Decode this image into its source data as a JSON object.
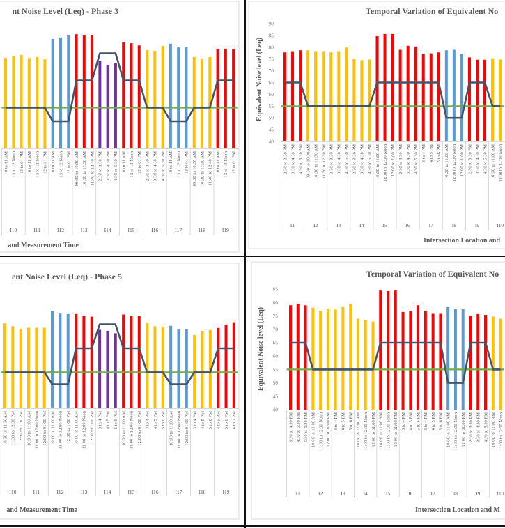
{
  "colors": {
    "red": "#ff0000",
    "yellow": "#ffc000",
    "blue": "#5b9bd5",
    "purple": "#7030a0",
    "measured_limit_line": "#70ad47",
    "standard_line": "#44546a"
  },
  "chart_data": [
    {
      "type": "bar",
      "panel": "top-left",
      "title": "nt Noise Level (Leq) - Phase 3",
      "xlabel": "and Measurement Time",
      "ylabel": "",
      "ylim": [
        40,
        90
      ],
      "yticks": [],
      "reference_line": 55,
      "groups": [
        {
          "name": "I10",
          "color": "yellow",
          "standard": 55,
          "bars": [
            {
              "label": "10 to 11 AM",
              "value": 73.3
            },
            {
              "label": "11 to 12 Noon",
              "value": 74.1
            },
            {
              "label": "12 to 01 PM",
              "value": 74.4
            }
          ]
        },
        {
          "name": "I11",
          "color": "yellow",
          "standard": 55,
          "bars": [
            {
              "label": "10 to 11 AM",
              "value": 73.3
            },
            {
              "label": "11 to 12 Noon",
              "value": 73.6
            },
            {
              "label": "12 to 01 PM",
              "value": 72.8
            }
          ]
        },
        {
          "name": "I12",
          "color": "blue",
          "standard": 50,
          "bars": [
            {
              "label": "10 to 11 AM",
              "value": 80.3
            },
            {
              "label": "11 to 12 Noon",
              "value": 80.8
            },
            {
              "label": "12 to 01 PM",
              "value": 81.8
            }
          ]
        },
        {
          "name": "I13",
          "color": "red",
          "standard": 65,
          "bars": [
            {
              "label": "09:30 to 10:30 AM",
              "value": 82.0
            },
            {
              "label": "10:30 to 11:30 AM",
              "value": 81.8
            },
            {
              "label": "11:40 to 12:40 PM",
              "value": 81.8
            }
          ]
        },
        {
          "name": "I14",
          "color": "purple",
          "standard": 75,
          "bars": [
            {
              "label": "2:30 to 3:30 PM",
              "value": 72.3
            },
            {
              "label": "3:30 to 4:30 PM",
              "value": 70.5
            },
            {
              "label": "4:30 to 5:30 PM",
              "value": 71.3
            }
          ]
        },
        {
          "name": "I15",
          "color": "red",
          "standard": 65,
          "bars": [
            {
              "label": "10 to 11 AM",
              "value": 79.0
            },
            {
              "label": "11 to 12 Noon",
              "value": 78.7
            },
            {
              "label": "12 to 01 PM",
              "value": 77.9
            }
          ]
        },
        {
          "name": "I16",
          "color": "yellow",
          "standard": 55,
          "bars": [
            {
              "label": "2:30 to 3:30 PM",
              "value": 76.2
            },
            {
              "label": "3:30 to 4:30 PM",
              "value": 75.9
            },
            {
              "label": "4:30 to 5:30 PM",
              "value": 77.7
            }
          ]
        },
        {
          "name": "I17",
          "color": "blue",
          "standard": 50,
          "bars": [
            {
              "label": "10 to 11 AM",
              "value": 78.5
            },
            {
              "label": "11 to 12 Noon",
              "value": 77.4
            },
            {
              "label": "12 to 01 PM",
              "value": 77.2
            }
          ]
        },
        {
          "name": "I18",
          "color": "yellow",
          "standard": 55,
          "bars": [
            {
              "label": "09:30 to 10:30 AM",
              "value": 73.6
            },
            {
              "label": "10:30 to 11:30 AM",
              "value": 72.8
            },
            {
              "label": "11:40 to 12:40 PM",
              "value": 73.6
            }
          ]
        },
        {
          "name": "I19",
          "color": "red",
          "standard": 65,
          "bars": [
            {
              "label": "10 to 11 AM",
              "value": 76.4
            },
            {
              "label": "11 to 12 Noon",
              "value": 76.7
            },
            {
              "label": "12 to 01 PM",
              "value": 76.4
            }
          ]
        }
      ]
    },
    {
      "type": "bar",
      "panel": "top-right",
      "title": "Temporal Variation of Equivalent No",
      "xlabel": "Intersection Location and",
      "ylabel": "Equivalent Noise level (Leq)",
      "ylim": [
        40,
        90
      ],
      "yticks": [
        40,
        45,
        50,
        55,
        60,
        65,
        70,
        75,
        80,
        85,
        90
      ],
      "reference_line": 55,
      "groups": [
        {
          "name": "I1",
          "color": "red",
          "standard": 65,
          "bars": [
            {
              "label": "2:30 to 3:30 PM",
              "value": 77.8
            },
            {
              "label": "3:30 to 4:30 PM",
              "value": 78.3
            },
            {
              "label": "4:30 to 5:30 PM",
              "value": 78.7
            }
          ]
        },
        {
          "name": "I2",
          "color": "yellow",
          "standard": 55,
          "bars": [
            {
              "label": "09:30 to 10:30AM",
              "value": 78.7
            },
            {
              "label": "10:30 to 11:30 AM",
              "value": 78.3
            },
            {
              "label": "11:30 to 12:30 PM",
              "value": 78.3
            }
          ]
        },
        {
          "name": "I3",
          "color": "yellow",
          "standard": 55,
          "bars": [
            {
              "label": "2:30 to 3:30 PM",
              "value": 77.8
            },
            {
              "label": "3:30 to 4:30 PM",
              "value": 78.3
            },
            {
              "label": "4:30 to 5:30 PM",
              "value": 79.9
            }
          ]
        },
        {
          "name": "I4",
          "color": "yellow",
          "standard": 55,
          "bars": [
            {
              "label": "2:30 to 3:30 PM",
              "value": 75.0
            },
            {
              "label": "3:30 to 4:30 PM",
              "value": 74.5
            },
            {
              "label": "4:30 to 5:30 PM",
              "value": 74.8
            }
          ]
        },
        {
          "name": "I5",
          "color": "red",
          "standard": 65,
          "bars": [
            {
              "label": "10:00 to 11:00 AM",
              "value": 85.0
            },
            {
              "label": "11:00 to 12:00 Noon",
              "value": 85.6
            },
            {
              "label": "12:00 to 1:00 PM",
              "value": 85.6
            }
          ]
        },
        {
          "name": "I6",
          "color": "red",
          "standard": 65,
          "bars": [
            {
              "label": "2:30 to 3:30 PM",
              "value": 78.9
            },
            {
              "label": "3:30 to 4:30 PM",
              "value": 80.6
            },
            {
              "label": "4:30 to 5:30 PM",
              "value": 80.3
            }
          ]
        },
        {
          "name": "I7",
          "color": "red",
          "standard": 65,
          "bars": [
            {
              "label": "3 to 4 PM",
              "value": 77.0
            },
            {
              "label": "4 to 5 PM",
              "value": 77.4
            },
            {
              "label": "5 to 6 PM",
              "value": 77.8
            }
          ]
        },
        {
          "name": "I8",
          "color": "blue",
          "standard": 50,
          "bars": [
            {
              "label": "10:00 to 11:00 AM",
              "value": 78.7
            },
            {
              "label": "11:00 to 12:00 Noon",
              "value": 78.9
            },
            {
              "label": "12:00 to 1:00 PM",
              "value": 77.3
            }
          ]
        },
        {
          "name": "I9",
          "color": "red",
          "standard": 65,
          "bars": [
            {
              "label": "2:30 to 3:30 PM",
              "value": 75.7
            },
            {
              "label": "3:30 to 4:30 PM",
              "value": 74.7
            },
            {
              "label": "4:30 to 5:30 PM",
              "value": 74.7
            }
          ]
        },
        {
          "name": "I10",
          "color": "yellow",
          "standard": 55,
          "bars": [
            {
              "label": "10:00 to 11:00 AM",
              "value": 75.3
            },
            {
              "label": "11:00 to 12:00 Noon",
              "value": 74.8
            }
          ]
        }
      ]
    },
    {
      "type": "bar",
      "panel": "bottom-left",
      "title": "ent Noise Level (Leq) - Phase 5",
      "xlabel": "and Measurement Time",
      "ylabel": "",
      "ylim": [
        40,
        85
      ],
      "yticks": [],
      "reference_line": 55,
      "groups": [
        {
          "name": "I10",
          "color": "yellow",
          "standard": 55,
          "bars": [
            {
              "label": "10:30 to 11:30AM",
              "value": 75.4
            },
            {
              "label": "11:30 to 12:30 PM",
              "value": 74.2
            },
            {
              "label": "12:30 to 1:30 PM",
              "value": 73.2
            }
          ]
        },
        {
          "name": "I11",
          "color": "yellow",
          "standard": 55,
          "bars": [
            {
              "label": "10:00 to 11:00 AM",
              "value": 73.6
            },
            {
              "label": "11:00 to 12:00 Noon",
              "value": 73.6
            },
            {
              "label": "12:00 to 01:00 PM",
              "value": 73.6
            }
          ]
        },
        {
          "name": "I12",
          "color": "blue",
          "standard": 50,
          "bars": [
            {
              "label": "10:00 to 11:00AM",
              "value": 80.5
            },
            {
              "label": "11:00 to 12:00 Noon",
              "value": 79.5
            },
            {
              "label": "12:00 to 1:00 PM",
              "value": 79.3
            }
          ]
        },
        {
          "name": "I13",
          "color": "red",
          "standard": 65,
          "bars": [
            {
              "label": "10:00 to 11:00AM",
              "value": 79.3
            },
            {
              "label": "11:00 to 12:00 Noon",
              "value": 78.4
            },
            {
              "label": "12:00 to 1:00 PM",
              "value": 78.2
            }
          ]
        },
        {
          "name": "I14",
          "color": "purple",
          "standard": 75,
          "bars": [
            {
              "label": "3 to 4 PM",
              "value": 72.7
            },
            {
              "label": "4 to 5 PM",
              "value": 72.3
            },
            {
              "label": "5 to 6 PM",
              "value": 71.3
            }
          ]
        },
        {
          "name": "I15",
          "color": "red",
          "standard": 65,
          "bars": [
            {
              "label": "10:00 to 11:00 AM",
              "value": 79.1
            },
            {
              "label": "11:00 to 12:00 Noon",
              "value": 78.4
            },
            {
              "label": "12:00 to 01:00 PM",
              "value": 78.6
            }
          ]
        },
        {
          "name": "I16",
          "color": "yellow",
          "standard": 55,
          "bars": [
            {
              "label": "3 to 4 PM",
              "value": 75.6
            },
            {
              "label": "4 to 5 PM",
              "value": 74.2
            },
            {
              "label": "5 to 6 PM",
              "value": 74.0
            }
          ]
        },
        {
          "name": "I17",
          "color": "blue",
          "standard": 50,
          "bars": [
            {
              "label": "10:00 to 11:00 AM",
              "value": 74.4
            },
            {
              "label": "11:00 to 12:00 Noon",
              "value": 73.1
            },
            {
              "label": "12:00 to 01:00 PM",
              "value": 73.1
            }
          ]
        },
        {
          "name": "I18",
          "color": "yellow",
          "standard": 55,
          "bars": [
            {
              "label": "3 to 4 PM",
              "value": 70.5
            },
            {
              "label": "4 to 5 PM",
              "value": 72.3
            },
            {
              "label": "5 to 6 PM",
              "value": 72.6
            }
          ]
        },
        {
          "name": "I19",
          "color": "red",
          "standard": 65,
          "bars": [
            {
              "label": "4 to 5 PM",
              "value": 73.5
            },
            {
              "label": "5 to 6 PM",
              "value": 74.8
            },
            {
              "label": "6 to 7 PM",
              "value": 75.9
            }
          ]
        }
      ]
    },
    {
      "type": "bar",
      "panel": "bottom-right",
      "title": "Temporal Variation of Equivalent No",
      "xlabel": "Intersection Location and M",
      "ylabel": "Equivalent Noise level (Leq)",
      "ylim": [
        40,
        85
      ],
      "yticks": [
        40,
        45,
        50,
        55,
        60,
        65,
        70,
        75,
        80,
        85
      ],
      "reference_line": 55,
      "groups": [
        {
          "name": "I1",
          "color": "red",
          "standard": 65,
          "bars": [
            {
              "label": "3:30 to 4:30 PM",
              "value": 79.0
            },
            {
              "label": "4:30 to 5:30 PM",
              "value": 79.4
            },
            {
              "label": "5:30 to 6:30 PM",
              "value": 79.0
            }
          ]
        },
        {
          "name": "I2",
          "color": "yellow",
          "standard": 55,
          "bars": [
            {
              "label": "10:00 to 11:00 AM",
              "value": 78.1
            },
            {
              "label": "11:00 to 12:00 Noon",
              "value": 76.8
            },
            {
              "label": "12:00 to 01:00 PM",
              "value": 77.5
            }
          ]
        },
        {
          "name": "I3",
          "color": "yellow",
          "standard": 55,
          "bars": [
            {
              "label": "3 to 4 PM",
              "value": 77.4
            },
            {
              "label": "4 to 5 PM",
              "value": 78.3
            },
            {
              "label": "5 to 6 PM",
              "value": 79.5
            }
          ]
        },
        {
          "name": "I4",
          "color": "yellow",
          "standard": 55,
          "bars": [
            {
              "label": "10:00 to 11:00 AM",
              "value": 74.0
            },
            {
              "label": "11:00 to 12:00 Noon",
              "value": 73.5
            },
            {
              "label": "12:00 to 01:00 PM",
              "value": 72.9
            }
          ]
        },
        {
          "name": "I5",
          "color": "red",
          "standard": 65,
          "bars": [
            {
              "label": "10:00 to 11:00 AM",
              "value": 84.5
            },
            {
              "label": "11:00 to 12:00 Noon",
              "value": 84.3
            },
            {
              "label": "12:00 to 01:00 PM",
              "value": 84.5
            }
          ]
        },
        {
          "name": "I6",
          "color": "red",
          "standard": 65,
          "bars": [
            {
              "label": "3 to 4 PM",
              "value": 76.5
            },
            {
              "label": "4 to 5 PM",
              "value": 77.0
            },
            {
              "label": "5 to 6 PM",
              "value": 79.0
            }
          ]
        },
        {
          "name": "I7",
          "color": "red",
          "standard": 65,
          "bars": [
            {
              "label": "3 to 4 PM",
              "value": 77.0
            },
            {
              "label": "4 to 5 PM",
              "value": 75.8
            },
            {
              "label": "5 to 6 PM",
              "value": 75.8
            }
          ]
        },
        {
          "name": "I8",
          "color": "blue",
          "standard": 50,
          "bars": [
            {
              "label": "10:00 to 11:00 AM",
              "value": 78.3
            },
            {
              "label": "11:00 to 12:00 Noon",
              "value": 77.5
            },
            {
              "label": "12:00 to 01:00 PM",
              "value": 77.5
            }
          ]
        },
        {
          "name": "I9",
          "color": "red",
          "standard": 65,
          "bars": [
            {
              "label": "2:30 to 3:30 PM",
              "value": 75.0
            },
            {
              "label": "3:30 to 4:30 PM",
              "value": 75.7
            },
            {
              "label": "4:30 to 5:30 PM",
              "value": 75.4
            }
          ]
        },
        {
          "name": "I10",
          "color": "yellow",
          "standard": 55,
          "bars": [
            {
              "label": "10:00 to 11:00 AM",
              "value": 74.8
            },
            {
              "label": "11:00 to 12:00 Noon",
              "value": 74.0
            }
          ]
        }
      ]
    }
  ]
}
